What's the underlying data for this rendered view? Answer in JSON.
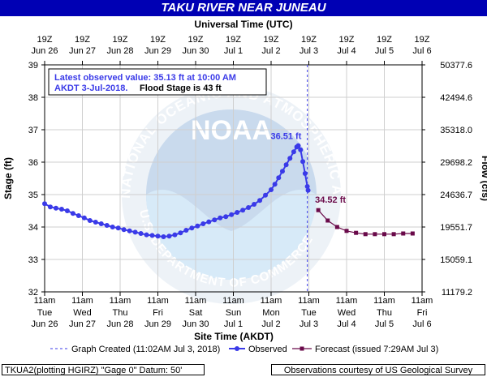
{
  "header": {
    "title": "TAKU RIVER NEAR JUNEAU"
  },
  "chart_data": {
    "type": "line",
    "top_axis_title": "Universal Time (UTC)",
    "bottom_axis_title": "Site Time (AKDT)",
    "left_axis_title": "Stage (ft)",
    "right_axis_title": "Flow (cfs)",
    "ylim": [
      32,
      39
    ],
    "left_ticks": [
      "32",
      "33",
      "34",
      "35",
      "36",
      "37",
      "38",
      "39"
    ],
    "right_ticks": [
      "11179.2",
      "15059.1",
      "19551.7",
      "24636.7",
      "29698.2",
      "35318.0",
      "42494.6",
      "50377.6"
    ],
    "top_ticks": [
      {
        "time": "19Z",
        "date": "Jun 26"
      },
      {
        "time": "19Z",
        "date": "Jun 27"
      },
      {
        "time": "19Z",
        "date": "Jun 28"
      },
      {
        "time": "19Z",
        "date": "Jun 29"
      },
      {
        "time": "19Z",
        "date": "Jun 30"
      },
      {
        "time": "19Z",
        "date": "Jul 1"
      },
      {
        "time": "19Z",
        "date": "Jul 2"
      },
      {
        "time": "19Z",
        "date": "Jul 3"
      },
      {
        "time": "19Z",
        "date": "Jul 4"
      },
      {
        "time": "19Z",
        "date": "Jul 5"
      },
      {
        "time": "19Z",
        "date": "Jul 6"
      }
    ],
    "bottom_ticks": [
      {
        "time": "11am",
        "day": "Tue",
        "date": "Jun 26"
      },
      {
        "time": "11am",
        "day": "Wed",
        "date": "Jun 27"
      },
      {
        "time": "11am",
        "day": "Thu",
        "date": "Jun 28"
      },
      {
        "time": "11am",
        "day": "Fri",
        "date": "Jun 29"
      },
      {
        "time": "11am",
        "day": "Sat",
        "date": "Jun 30"
      },
      {
        "time": "11am",
        "day": "Sun",
        "date": "Jul 1"
      },
      {
        "time": "11am",
        "day": "Mon",
        "date": "Jul 2"
      },
      {
        "time": "11am",
        "day": "Tue",
        "date": "Jul 3"
      },
      {
        "time": "11am",
        "day": "Wed",
        "date": "Jul 4"
      },
      {
        "time": "11am",
        "day": "Thu",
        "date": "Jul 5"
      },
      {
        "time": "11am",
        "day": "Fri",
        "date": "Jul 6"
      }
    ],
    "info_line1": "Latest observed value: 35.13 ft at 10:00 AM",
    "info_line2_a": "AKDT 3-Jul-2018.",
    "info_line2_b": "Flood Stage is 43 ft",
    "graph_created_days": 6.96,
    "observed": {
      "name": "Observed",
      "color": "#3a3ae8",
      "points": [
        [
          0.0,
          34.72
        ],
        [
          0.15,
          34.62
        ],
        [
          0.3,
          34.58
        ],
        [
          0.45,
          34.55
        ],
        [
          0.6,
          34.5
        ],
        [
          0.75,
          34.42
        ],
        [
          0.9,
          34.35
        ],
        [
          1.05,
          34.28
        ],
        [
          1.2,
          34.2
        ],
        [
          1.35,
          34.15
        ],
        [
          1.5,
          34.1
        ],
        [
          1.65,
          34.05
        ],
        [
          1.8,
          34.0
        ],
        [
          1.95,
          33.97
        ],
        [
          2.1,
          33.92
        ],
        [
          2.25,
          33.88
        ],
        [
          2.4,
          33.84
        ],
        [
          2.55,
          33.8
        ],
        [
          2.7,
          33.76
        ],
        [
          2.85,
          33.74
        ],
        [
          3.0,
          33.72
        ],
        [
          3.15,
          33.7
        ],
        [
          3.3,
          33.72
        ],
        [
          3.45,
          33.76
        ],
        [
          3.6,
          33.82
        ],
        [
          3.75,
          33.9
        ],
        [
          3.9,
          33.97
        ],
        [
          4.05,
          34.03
        ],
        [
          4.2,
          34.1
        ],
        [
          4.35,
          34.16
        ],
        [
          4.5,
          34.22
        ],
        [
          4.65,
          34.28
        ],
        [
          4.8,
          34.32
        ],
        [
          4.95,
          34.38
        ],
        [
          5.1,
          34.45
        ],
        [
          5.25,
          34.52
        ],
        [
          5.4,
          34.6
        ],
        [
          5.55,
          34.7
        ],
        [
          5.7,
          34.82
        ],
        [
          5.85,
          34.98
        ],
        [
          6.0,
          35.15
        ],
        [
          6.1,
          35.32
        ],
        [
          6.2,
          35.52
        ],
        [
          6.3,
          35.72
        ],
        [
          6.4,
          35.92
        ],
        [
          6.5,
          36.12
        ],
        [
          6.6,
          36.32
        ],
        [
          6.68,
          36.47
        ],
        [
          6.72,
          36.51
        ],
        [
          6.78,
          36.38
        ],
        [
          6.84,
          36.02
        ],
        [
          6.9,
          35.65
        ],
        [
          6.96,
          35.25
        ],
        [
          6.98,
          35.13
        ]
      ]
    },
    "forecast": {
      "name": "Forecast (issued 7:29AM Jul 3)",
      "color": "#6a0a4a",
      "points": [
        [
          7.25,
          34.52
        ],
        [
          7.5,
          34.2
        ],
        [
          7.75,
          34.0
        ],
        [
          8.0,
          33.88
        ],
        [
          8.25,
          33.82
        ],
        [
          8.5,
          33.78
        ],
        [
          8.75,
          33.78
        ],
        [
          9.0,
          33.78
        ],
        [
          9.25,
          33.78
        ],
        [
          9.5,
          33.8
        ],
        [
          9.75,
          33.8
        ]
      ]
    },
    "peak_label": "36.51 ft",
    "forecast_label": "34.52 ft",
    "legend": {
      "graph_created": "Graph Created (11:02AM Jul 3, 2018)",
      "observed": "Observed",
      "forecast": "Forecast (issued 7:29AM Jul 3)"
    }
  },
  "footer": {
    "left": "TKUA2(plotting HGIRZ) \"Gage 0\" Datum:  50'",
    "right": "Observations courtesy of US Geological Survey"
  },
  "watermark": {
    "text": "NATIONAL OCEANIC AND ATMOSPHERIC ADMINISTRATION",
    "bottom_text": "U.S. DEPARTMENT OF COMMERCE",
    "center_text": "NOAA"
  }
}
